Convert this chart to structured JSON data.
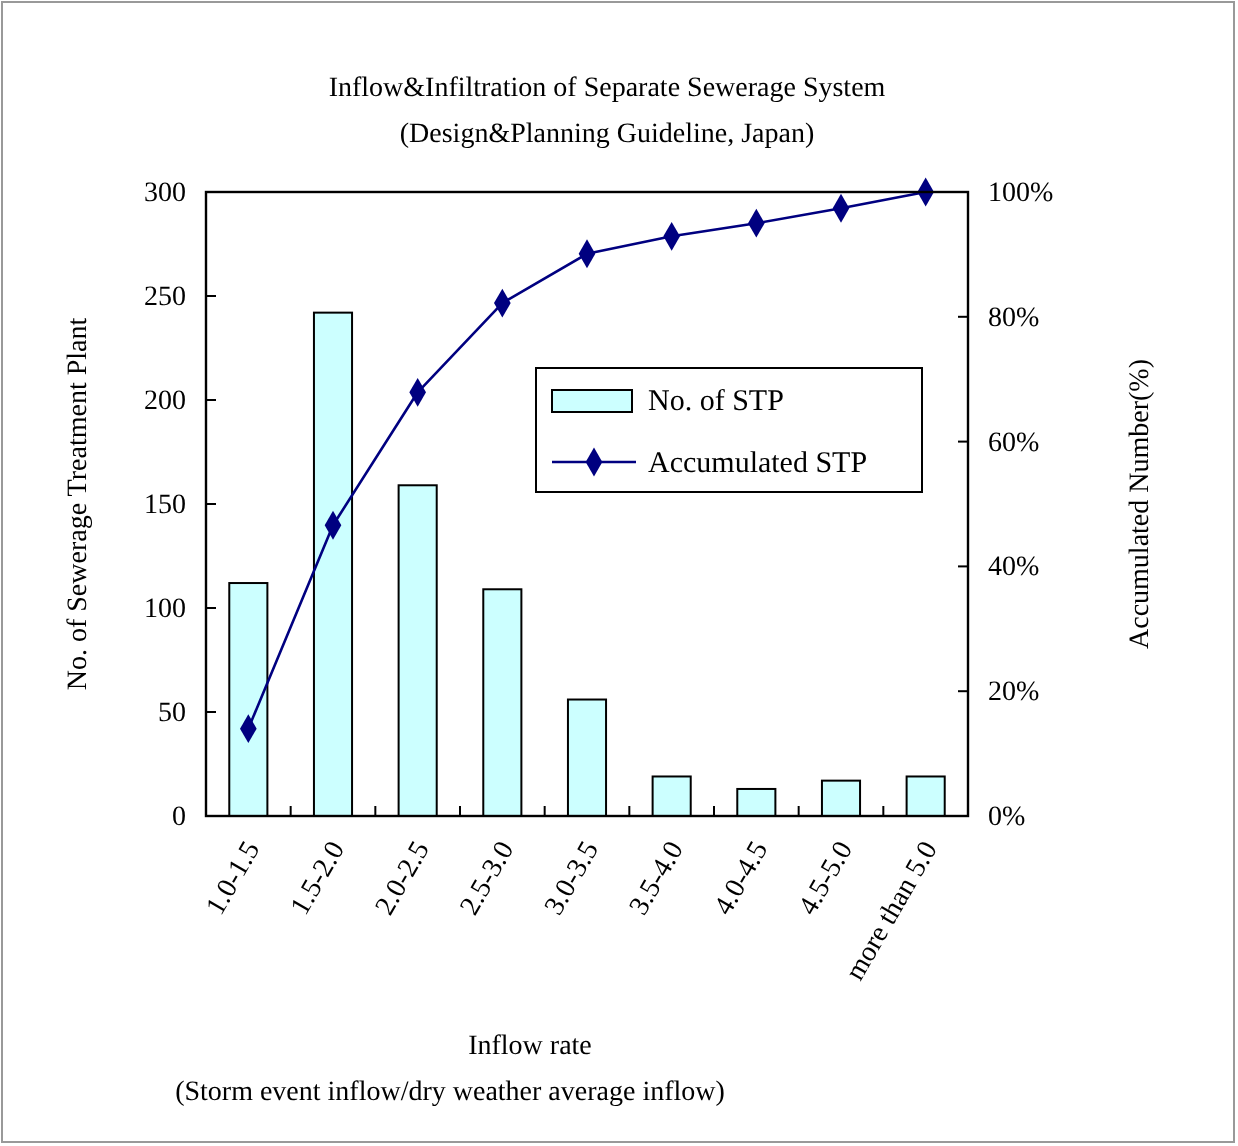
{
  "chart_data": {
    "type": "bar",
    "title": "Inflow&Infiltration of Separate Sewerage System",
    "subtitle": "(Design&Planning Guideline, Japan)",
    "xlabel": "Inflow rate\n(Storm event inflow/dry weather average inflow)",
    "ylabel": "No. of Sewerage Treatment Plant",
    "y2label": "Accumulated Number(%)",
    "categories": [
      "1.0-1.5",
      "1.5-2.0",
      "2.0-2.5",
      "2.5-3.0",
      "3.0-3.5",
      "3.5-4.0",
      "4.0-4.5",
      "4.5-5.0",
      "more than 5.0"
    ],
    "series": [
      {
        "name": "No. of STP",
        "color": "#ccffff",
        "values": [
          112,
          242,
          159,
          109,
          56,
          19,
          13,
          17,
          19
        ]
      },
      {
        "name": "Accumulated STP",
        "type": "line",
        "axis": "y2",
        "color": "#000080",
        "marker": "diamond",
        "values": [
          14,
          46.6,
          67.9,
          82.2,
          90.1,
          92.9,
          95.0,
          97.4,
          100
        ]
      }
    ],
    "ylim": [
      0,
      300
    ],
    "yticks": [
      0,
      50,
      100,
      150,
      200,
      250,
      300
    ],
    "y2lim": [
      0,
      100
    ],
    "y2ticks": [
      {
        "value": 0,
        "label": "0%"
      },
      {
        "value": 20,
        "label": "20%"
      },
      {
        "value": 40,
        "label": "40%"
      },
      {
        "value": 60,
        "label": "60%"
      },
      {
        "value": 80,
        "label": "80%"
      },
      {
        "value": 100,
        "label": "100%"
      }
    ],
    "grid": false,
    "legend": "right"
  }
}
